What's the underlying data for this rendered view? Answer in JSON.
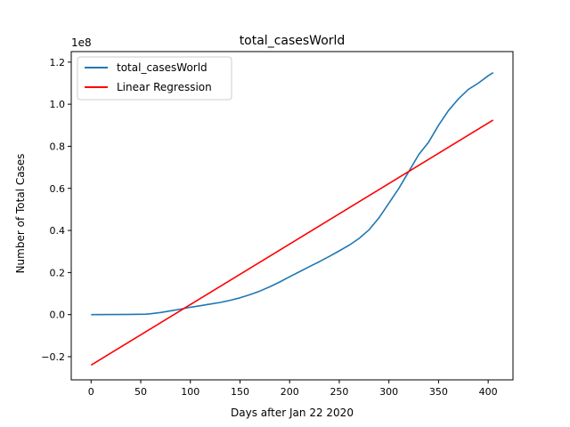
{
  "chart_data": {
    "type": "line",
    "title": "total_casesWorld",
    "xlabel": "Days after Jan 22 2020",
    "ylabel": "Number of Total Cases",
    "y_offset_label": "1e8",
    "xlim": [
      -20,
      425
    ],
    "ylim": [
      -0.31,
      1.25
    ],
    "xticks": [
      0,
      50,
      100,
      150,
      200,
      250,
      300,
      350,
      400
    ],
    "yticks": [
      -0.2,
      0.0,
      0.2,
      0.4,
      0.6,
      0.8,
      1.0,
      1.2
    ],
    "ytick_labels": [
      "−0.2",
      "0.0",
      "0.2",
      "0.4",
      "0.6",
      "0.8",
      "1.0",
      "1.2"
    ],
    "grid": false,
    "legend_position": "top-left",
    "series": [
      {
        "name": "total_casesWorld",
        "color": "#1f77b4",
        "x": [
          0,
          20,
          40,
          55,
          60,
          70,
          80,
          90,
          100,
          110,
          120,
          130,
          140,
          150,
          160,
          170,
          180,
          190,
          200,
          210,
          220,
          230,
          240,
          250,
          260,
          270,
          280,
          290,
          300,
          310,
          320,
          330,
          340,
          350,
          360,
          370,
          380,
          390,
          400,
          405
        ],
        "y": [
          0.0,
          0.0005,
          0.001,
          0.002,
          0.004,
          0.01,
          0.018,
          0.026,
          0.035,
          0.042,
          0.05,
          0.058,
          0.068,
          0.08,
          0.095,
          0.112,
          0.132,
          0.155,
          0.18,
          0.204,
          0.228,
          0.252,
          0.277,
          0.303,
          0.33,
          0.362,
          0.403,
          0.46,
          0.53,
          0.6,
          0.68,
          0.76,
          0.82,
          0.9,
          0.97,
          1.025,
          1.07,
          1.1,
          1.135,
          1.15
        ]
      },
      {
        "name": "Linear Regression",
        "color": "#ff0000",
        "x": [
          0,
          405
        ],
        "y": [
          -0.24,
          0.925
        ]
      }
    ]
  }
}
